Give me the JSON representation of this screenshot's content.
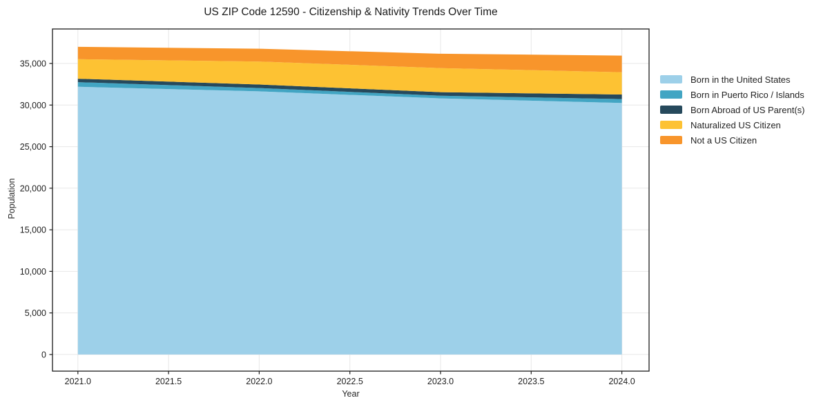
{
  "chart_data": {
    "type": "area",
    "stacked": true,
    "title": "US ZIP Code 12590 - Citizenship & Nativity Trends Over Time",
    "xlabel": "Year",
    "ylabel": "Population",
    "x": [
      2021,
      2022,
      2023,
      2024
    ],
    "series": [
      {
        "name": "Born in the United States",
        "color": "#9DD0E9",
        "values": [
          32200,
          31650,
          30800,
          30250
        ]
      },
      {
        "name": "Born in Puerto Rico / Islands",
        "color": "#42A5C3",
        "values": [
          550,
          400,
          330,
          470
        ]
      },
      {
        "name": "Born Abroad of US Parent(s)",
        "color": "#26495C",
        "values": [
          420,
          420,
          420,
          550
        ]
      },
      {
        "name": "Naturalized US Citizen",
        "color": "#FDC233",
        "values": [
          2350,
          2760,
          2900,
          2680
        ]
      },
      {
        "name": "Not a US Citizen",
        "color": "#F8952B",
        "values": [
          1480,
          1550,
          1720,
          2000
        ]
      }
    ],
    "totals": [
      37000,
      36780,
      36170,
      35950
    ],
    "xlim": [
      2020.86,
      2024.15
    ],
    "ylim": [
      -2000,
      39150
    ],
    "x_tick_values": [
      2021.0,
      2021.5,
      2022.0,
      2022.5,
      2023.0,
      2023.5,
      2024.0
    ],
    "x_tick_labels": [
      "2021.0",
      "2021.5",
      "2022.0",
      "2022.5",
      "2023.0",
      "2023.5",
      "2024.0"
    ],
    "y_tick_values": [
      0,
      5000,
      10000,
      15000,
      20000,
      25000,
      30000,
      35000
    ],
    "y_tick_labels": [
      "0",
      "5,000",
      "10,000",
      "15,000",
      "20,000",
      "25,000",
      "30,000",
      "35,000"
    ],
    "grid": true,
    "legend_position": "right-outside",
    "grid_color": "#e7e7e7",
    "axis_color": "#1a1a1a",
    "tick_label_color": "#1f1f1f",
    "background_color": "#ffffff"
  }
}
